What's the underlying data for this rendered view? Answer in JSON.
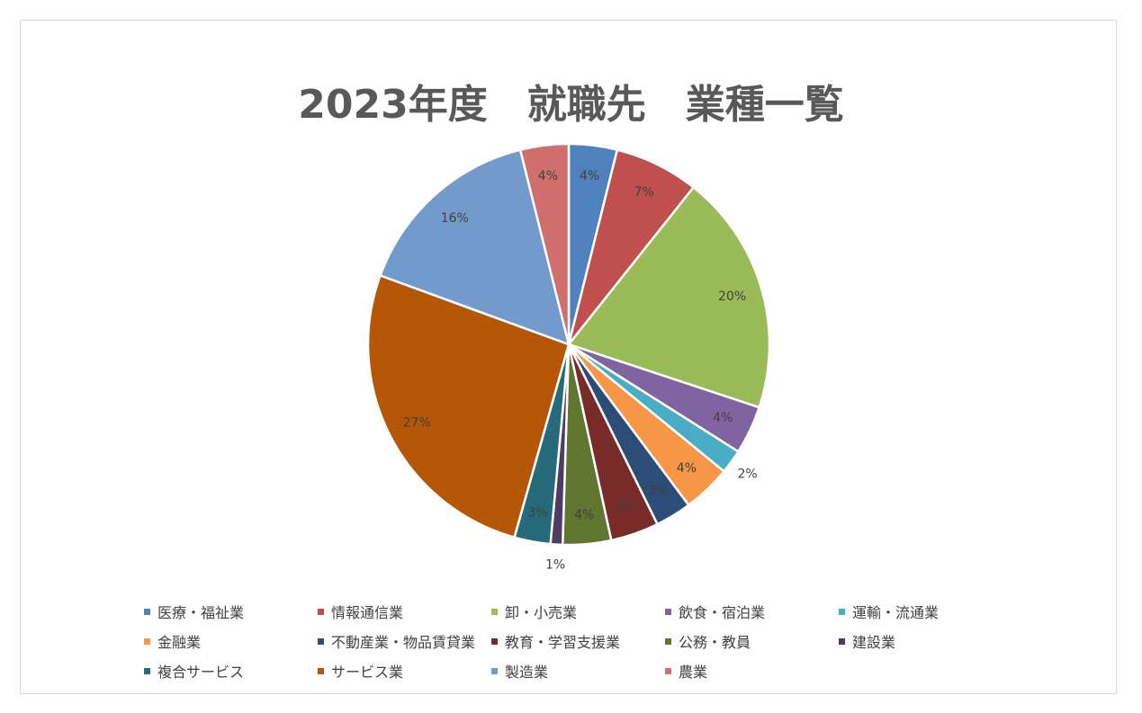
{
  "chart_data": {
    "type": "pie",
    "title": "2023年度　就職先　業種一覧",
    "slices": [
      {
        "label": "医療・福祉業",
        "value": 4,
        "display": "4%",
        "color": "#4f81bd"
      },
      {
        "label": "情報通信業",
        "value": 7,
        "display": "7%",
        "color": "#c0504d"
      },
      {
        "label": "卸・小売業",
        "value": 20,
        "display": "20%",
        "color": "#9bbb59"
      },
      {
        "label": "飲食・宿泊業",
        "value": 4,
        "display": "4%",
        "color": "#8064a2"
      },
      {
        "label": "運輸・流通業",
        "value": 2,
        "display": "2%",
        "color": "#4bacc6"
      },
      {
        "label": "金融業",
        "value": 4,
        "display": "4%",
        "color": "#f79646"
      },
      {
        "label": "不動産業・物品賃貸業",
        "value": 3,
        "display": "3%",
        "color": "#2c4d75"
      },
      {
        "label": "教育・学習支援業",
        "value": 4,
        "display": "4%",
        "color": "#772c2a"
      },
      {
        "label": "公務・教員",
        "value": 4,
        "display": "4%",
        "color": "#5f7530"
      },
      {
        "label": "建設業",
        "value": 1,
        "display": "1%",
        "color": "#4d3b62"
      },
      {
        "label": "複合サービス",
        "value": 3,
        "display": "3%",
        "color": "#276a7c"
      },
      {
        "label": "サービス業",
        "value": 27,
        "display": "27%",
        "color": "#b65708"
      },
      {
        "label": "製造業",
        "value": 16,
        "display": "16%",
        "color": "#729aca"
      },
      {
        "label": "農業",
        "value": 4,
        "display": "4%",
        "color": "#d06f6d"
      }
    ],
    "legend": "bottom"
  }
}
